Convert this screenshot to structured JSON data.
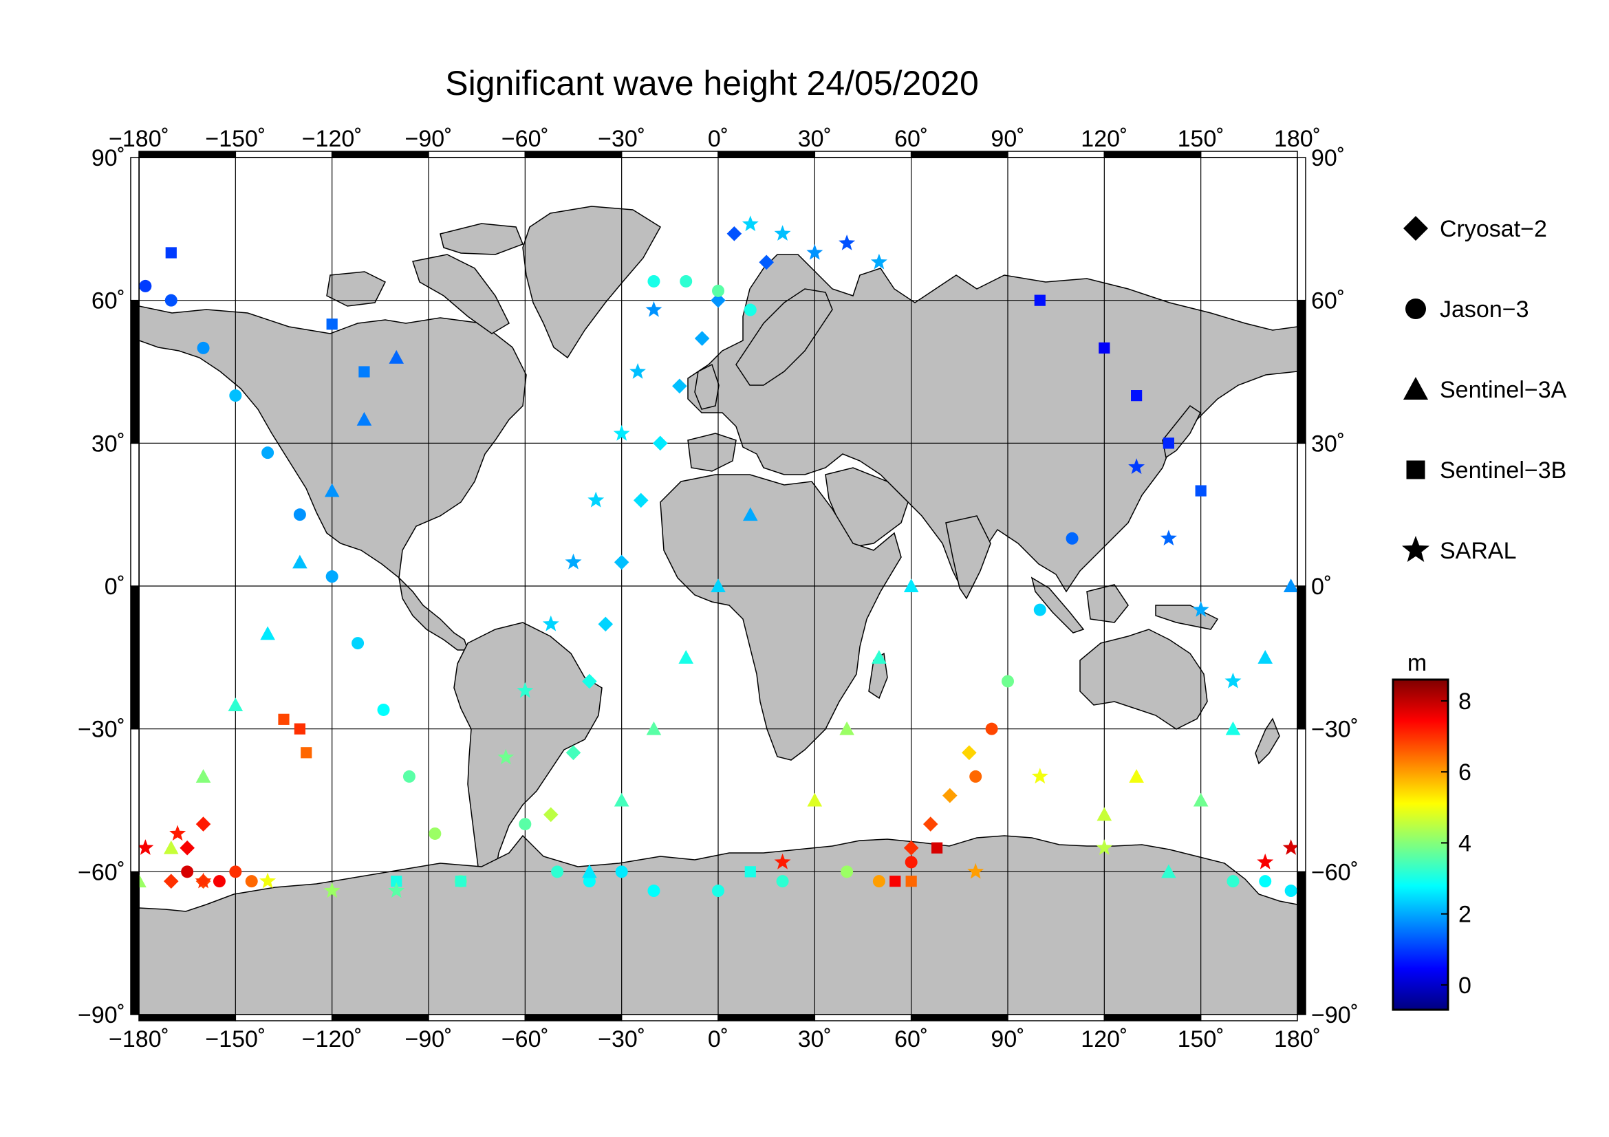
{
  "title": "Significant wave height 24/05/2020",
  "axes": {
    "lon_ticks": [
      "−180˚",
      "−150˚",
      "−120˚",
      "−90˚",
      "−60˚",
      "−30˚",
      "0˚",
      "30˚",
      "60˚",
      "90˚",
      "120˚",
      "150˚",
      "180˚"
    ],
    "lat_ticks": [
      "90˚",
      "60˚",
      "30˚",
      "0˚",
      "−30˚",
      "−60˚",
      "−90˚"
    ],
    "lon_range": [
      -180,
      180
    ],
    "lat_range": [
      -90,
      90
    ],
    "grid": true
  },
  "legend": {
    "position": "right",
    "items": [
      {
        "label": "Cryosat−2",
        "symbol": "diamond"
      },
      {
        "label": "Jason−3",
        "symbol": "circle"
      },
      {
        "label": "Sentinel−3A",
        "symbol": "triangle"
      },
      {
        "label": "Sentinel−3B",
        "symbol": "square"
      },
      {
        "label": "SARAL",
        "symbol": "star"
      }
    ]
  },
  "colorbar": {
    "unit": "m",
    "ticks": [
      "8",
      "6",
      "4",
      "2",
      "0"
    ],
    "range": [
      -0.7,
      8.6
    ],
    "colormap": "jet"
  },
  "chart_data": {
    "type": "scatter",
    "title": "Significant wave height 24/05/2020",
    "xlabel": "",
    "ylabel": "",
    "xlim": [
      -180,
      180
    ],
    "ylim": [
      -90,
      90
    ],
    "value_unit": "m",
    "series": [
      {
        "name": "Cryosat−2",
        "points": [
          [
            -165,
            -55,
            7.5
          ],
          [
            -160,
            -50,
            7.2
          ],
          [
            -170,
            -62,
            7
          ],
          [
            -160,
            -62,
            6.8
          ],
          [
            5,
            74,
            1.2
          ],
          [
            15,
            68,
            1.3
          ],
          [
            0,
            60,
            1.8
          ],
          [
            -5,
            52,
            2.0
          ],
          [
            -12,
            42,
            2.2
          ],
          [
            -18,
            30,
            2.6
          ],
          [
            -24,
            18,
            2.5
          ],
          [
            -30,
            5,
            2.2
          ],
          [
            -35,
            -8,
            2.4
          ],
          [
            -40,
            -20,
            3.0
          ],
          [
            -45,
            -35,
            3.4
          ],
          [
            -52,
            -48,
            4.5
          ],
          [
            60,
            -55,
            7.0
          ],
          [
            66,
            -50,
            6.8
          ],
          [
            72,
            -44,
            6.0
          ],
          [
            78,
            -35,
            5.5
          ]
        ]
      },
      {
        "name": "Jason−3",
        "points": [
          [
            -165,
            -60,
            7.8
          ],
          [
            -155,
            -62,
            7.5
          ],
          [
            -150,
            -60,
            7.0
          ],
          [
            -145,
            -62,
            6.5
          ],
          [
            -178,
            63,
            1.0
          ],
          [
            -170,
            60,
            1.2
          ],
          [
            -160,
            50,
            1.8
          ],
          [
            -150,
            40,
            2.2
          ],
          [
            -140,
            28,
            2.0
          ],
          [
            -130,
            15,
            1.8
          ],
          [
            -120,
            2,
            2.0
          ],
          [
            -112,
            -12,
            2.4
          ],
          [
            -104,
            -26,
            2.8
          ],
          [
            -96,
            -40,
            3.6
          ],
          [
            -88,
            -52,
            4.2
          ],
          [
            -80,
            -62,
            3.8
          ],
          [
            -20,
            64,
            3.0
          ],
          [
            -10,
            64,
            3.2
          ],
          [
            0,
            62,
            3.6
          ],
          [
            10,
            58,
            3.0
          ],
          [
            -60,
            -50,
            3.6
          ],
          [
            -50,
            -60,
            3.2
          ],
          [
            -40,
            -62,
            2.8
          ],
          [
            -30,
            -60,
            2.6
          ],
          [
            -20,
            -64,
            2.8
          ],
          [
            0,
            -64,
            3.0
          ],
          [
            20,
            -62,
            3.2
          ],
          [
            40,
            -60,
            4.2
          ],
          [
            50,
            -62,
            6.0
          ],
          [
            60,
            -58,
            7.2
          ],
          [
            80,
            -40,
            6.5
          ],
          [
            85,
            -30,
            6.8
          ],
          [
            90,
            -20,
            3.8
          ],
          [
            100,
            -5,
            2.4
          ],
          [
            110,
            10,
            1.4
          ],
          [
            160,
            -62,
            3.2
          ],
          [
            170,
            -62,
            2.8
          ],
          [
            178,
            -64,
            2.6
          ]
        ]
      },
      {
        "name": "Sentinel−3A",
        "points": [
          [
            -180,
            -62,
            4.2
          ],
          [
            -170,
            -55,
            4.6
          ],
          [
            -160,
            -40,
            4.0
          ],
          [
            -150,
            -25,
            3.2
          ],
          [
            -140,
            -10,
            2.6
          ],
          [
            -130,
            5,
            2.2
          ],
          [
            -120,
            20,
            1.8
          ],
          [
            -110,
            35,
            1.6
          ],
          [
            -100,
            48,
            1.4
          ],
          [
            -40,
            -60,
            2.6
          ],
          [
            -30,
            -45,
            3.4
          ],
          [
            -20,
            -30,
            3.6
          ],
          [
            -10,
            -15,
            3.0
          ],
          [
            0,
            0,
            2.4
          ],
          [
            10,
            15,
            2.0
          ],
          [
            140,
            -60,
            3.2
          ],
          [
            150,
            -45,
            3.8
          ],
          [
            160,
            -30,
            3.0
          ],
          [
            170,
            -15,
            2.4
          ],
          [
            178,
            0,
            1.8
          ],
          [
            30,
            -45,
            4.8
          ],
          [
            40,
            -30,
            4.2
          ],
          [
            50,
            -15,
            3.2
          ],
          [
            60,
            0,
            2.6
          ],
          [
            120,
            -48,
            4.6
          ],
          [
            130,
            -40,
            5.0
          ]
        ]
      },
      {
        "name": "Sentinel−3B",
        "points": [
          [
            -170,
            70,
            1.0
          ],
          [
            -130,
            -30,
            7.0
          ],
          [
            -128,
            -35,
            6.5
          ],
          [
            -135,
            -28,
            6.8
          ],
          [
            55,
            -62,
            7.5
          ],
          [
            68,
            -55,
            7.8
          ],
          [
            -100,
            -62,
            3.0
          ],
          [
            -80,
            -62,
            3.2
          ],
          [
            10,
            -60,
            3.0
          ],
          [
            60,
            -62,
            6.5
          ],
          [
            -120,
            55,
            1.4
          ],
          [
            -110,
            45,
            1.6
          ],
          [
            100,
            60,
            0.6
          ],
          [
            120,
            50,
            0.4
          ],
          [
            130,
            40,
            0.6
          ],
          [
            140,
            30,
            0.8
          ],
          [
            150,
            20,
            1.2
          ]
        ]
      },
      {
        "name": "SARAL",
        "points": [
          [
            -178,
            -55,
            7.5
          ],
          [
            -168,
            -52,
            7.2
          ],
          [
            -160,
            -62,
            7.0
          ],
          [
            -140,
            -62,
            5.0
          ],
          [
            -120,
            -64,
            4.2
          ],
          [
            -100,
            -64,
            3.6
          ],
          [
            10,
            76,
            2.4
          ],
          [
            20,
            74,
            2.2
          ],
          [
            30,
            70,
            1.8
          ],
          [
            40,
            72,
            1.2
          ],
          [
            50,
            68,
            2.0
          ],
          [
            -20,
            58,
            1.8
          ],
          [
            -25,
            45,
            2.2
          ],
          [
            -30,
            32,
            2.6
          ],
          [
            -38,
            18,
            2.4
          ],
          [
            -45,
            5,
            2.0
          ],
          [
            -52,
            -8,
            2.4
          ],
          [
            -60,
            -22,
            3.2
          ],
          [
            -66,
            -36,
            3.8
          ],
          [
            170,
            -58,
            7.5
          ],
          [
            178,
            -55,
            7.8
          ],
          [
            120,
            -55,
            4.5
          ],
          [
            100,
            -40,
            5.0
          ],
          [
            80,
            -60,
            6.0
          ],
          [
            20,
            -58,
            7.2
          ],
          [
            160,
            -20,
            2.4
          ],
          [
            150,
            -5,
            2.0
          ],
          [
            140,
            10,
            1.4
          ],
          [
            130,
            25,
            1.0
          ]
        ]
      }
    ]
  }
}
